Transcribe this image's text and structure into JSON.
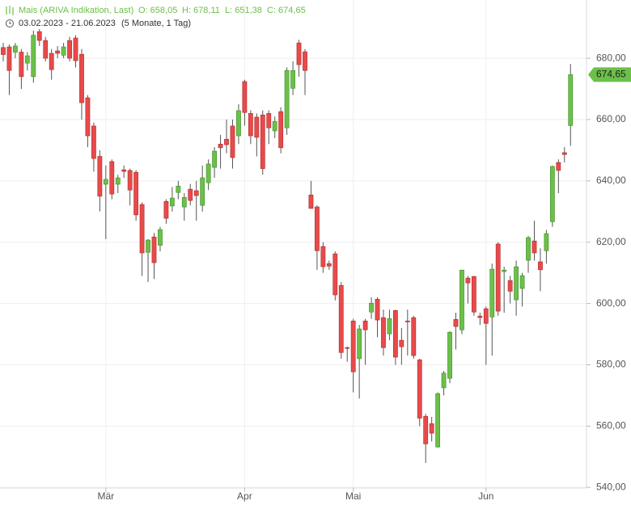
{
  "chart_data": {
    "type": "candlestick",
    "header": {
      "name": "Mais (ARIVA Indikation, Last)",
      "open": "O: 658,05",
      "high": "H: 678,11",
      "low": "L: 651,38",
      "close": "C: 674,65",
      "range": "03.02.2023 - 21.06.2023",
      "period": "(5 Monate, 1 Tag)"
    },
    "last_price_label": "674,65",
    "up_color": "#6cc04a",
    "down_color": "#e84a4a",
    "categories": [
      null,
      null,
      null,
      null,
      null,
      null,
      null,
      null,
      null,
      null,
      null,
      null,
      null,
      null,
      null,
      null,
      null,
      "Mär",
      null,
      null,
      null,
      null,
      null,
      null,
      null,
      null,
      null,
      null,
      null,
      null,
      null,
      null,
      null,
      null,
      null,
      null,
      null,
      null,
      null,
      null,
      "Apr",
      null,
      null,
      null,
      null,
      null,
      null,
      null,
      null,
      null,
      null,
      null,
      null,
      null,
      null,
      null,
      null,
      null,
      "Mai",
      null,
      null,
      null,
      null,
      null,
      null,
      null,
      null,
      null,
      null,
      null,
      null,
      null,
      null,
      null,
      null,
      null,
      null,
      null,
      null,
      null,
      "Jun",
      null,
      null,
      null,
      null,
      null,
      null,
      null,
      null,
      null,
      null,
      null,
      null,
      null,
      null
    ],
    "candles": [
      [
        683.5,
        685,
        679,
        681.2
      ],
      [
        683.7,
        684.5,
        668,
        676
      ],
      [
        682,
        685,
        680,
        684
      ],
      [
        682,
        683,
        670,
        674
      ],
      [
        678.4,
        682,
        676,
        680.8
      ],
      [
        674,
        689,
        672,
        687.5
      ],
      [
        688.7,
        689.5,
        684,
        685.8
      ],
      [
        685.8,
        687,
        679,
        680
      ],
      [
        681.6,
        683,
        673,
        676.3
      ],
      [
        682.4,
        684,
        680,
        681.6
      ],
      [
        681,
        685,
        680,
        683.7
      ],
      [
        685.8,
        687,
        679,
        680
      ],
      [
        686.6,
        687.5,
        677,
        679.2
      ],
      [
        681.3,
        683,
        660,
        665.5
      ],
      [
        667.1,
        668,
        651,
        654.7
      ],
      [
        657.9,
        659,
        643,
        647.3
      ],
      [
        648,
        650,
        630,
        635
      ],
      [
        638.9,
        645,
        621,
        640.5
      ],
      [
        646.3,
        647,
        634,
        635.7
      ],
      [
        638.9,
        642,
        636,
        641
      ],
      [
        643.6,
        645,
        641,
        643.1
      ],
      [
        643.4,
        644,
        632,
        637
      ],
      [
        642.8,
        643.5,
        627,
        628.9
      ],
      [
        632.3,
        633,
        609,
        616.5
      ],
      [
        616.7,
        621,
        607,
        620.7
      ],
      [
        621.7,
        623,
        608,
        613.3
      ],
      [
        619,
        625,
        617,
        624.1
      ],
      [
        633.3,
        634,
        626,
        627.8
      ],
      [
        631.8,
        638,
        630,
        634.4
      ],
      [
        636.2,
        640,
        634,
        638.3
      ],
      [
        631.5,
        636,
        627,
        634.6
      ],
      [
        637.3,
        639,
        632,
        633.6
      ],
      [
        636.8,
        640,
        627,
        635.2
      ],
      [
        632,
        645,
        630,
        641
      ],
      [
        639.4,
        647,
        637,
        645.5
      ],
      [
        644.4,
        651,
        641,
        649.7
      ],
      [
        652,
        655,
        644,
        650.8
      ],
      [
        653.6,
        660,
        649,
        651.8
      ],
      [
        657.9,
        660,
        644,
        647.6
      ],
      [
        654.7,
        665,
        652,
        662.9
      ],
      [
        672.4,
        673,
        658,
        662.3
      ],
      [
        662,
        663,
        652,
        654.7
      ],
      [
        660.8,
        662,
        648,
        654.2
      ],
      [
        661.5,
        663,
        642,
        644
      ],
      [
        662,
        663,
        652,
        657.3
      ],
      [
        656.3,
        661,
        654,
        659.4
      ],
      [
        662.6,
        664,
        649,
        650.8
      ],
      [
        657.3,
        677,
        655,
        676
      ],
      [
        670.2,
        679,
        668,
        676
      ],
      [
        685,
        686,
        674,
        677.9
      ],
      [
        682.1,
        683,
        668,
        676
      ],
      [
        635.4,
        640,
        631,
        631
      ],
      [
        631.5,
        632,
        611,
        617.2
      ],
      [
        618.6,
        620,
        610,
        612
      ],
      [
        613,
        614,
        611,
        612.2
      ],
      [
        616.2,
        617,
        601,
        602.8
      ],
      [
        605.9,
        607,
        582,
        584
      ],
      [
        585.6,
        586,
        581,
        585.4
      ],
      [
        594.3,
        595,
        571,
        577.7
      ],
      [
        582,
        593,
        569,
        591.7
      ],
      [
        594.3,
        595,
        580,
        591.4
      ],
      [
        597.2,
        602,
        595,
        600.1
      ],
      [
        601.4,
        602,
        589,
        594.6
      ],
      [
        595.4,
        598,
        583,
        585.6
      ],
      [
        590.1,
        598,
        588,
        595.1
      ],
      [
        597.7,
        598,
        580,
        582.5
      ],
      [
        588,
        592,
        580,
        585.9
      ],
      [
        594.3,
        598,
        583,
        594
      ],
      [
        595.4,
        596,
        582,
        583
      ],
      [
        581.6,
        582,
        560,
        562.6
      ],
      [
        563.2,
        564,
        548,
        554.2
      ],
      [
        560.8,
        563,
        555,
        557.7
      ],
      [
        553.2,
        571,
        553,
        570.6
      ],
      [
        572.5,
        578,
        570,
        577.3
      ],
      [
        575.6,
        591,
        574,
        590.6
      ],
      [
        594.8,
        597,
        585,
        592.5
      ],
      [
        591.4,
        611,
        590,
        610.9
      ],
      [
        608.3,
        609,
        600,
        606.7
      ],
      [
        608.8,
        609,
        596,
        597.2
      ],
      [
        595.9,
        597,
        593,
        595.4
      ],
      [
        598.3,
        599,
        580,
        593.5
      ],
      [
        595.6,
        613,
        583,
        611.2
      ],
      [
        619.4,
        620,
        596,
        597.5
      ],
      [
        610.4,
        612,
        597,
        610.9
      ],
      [
        607.5,
        609,
        600,
        604
      ],
      [
        601.2,
        614,
        596,
        612
      ],
      [
        604.9,
        610,
        599,
        609.1
      ],
      [
        614.1,
        622,
        610,
        621.5
      ],
      [
        620.4,
        627,
        614,
        616.5
      ],
      [
        613.6,
        618,
        604,
        611
      ],
      [
        617.2,
        624,
        613,
        622.8
      ],
      [
        626.7,
        645,
        625,
        644.7
      ],
      [
        646,
        647,
        636,
        643.4
      ],
      [
        649.2,
        651,
        646,
        648.6
      ],
      [
        658.05,
        678.11,
        651.38,
        674.65
      ]
    ],
    "ylim": [
      539.8,
      699
    ],
    "yticks": [
      {
        "value": 540,
        "label": "540,00"
      },
      {
        "value": 560,
        "label": "560,00"
      },
      {
        "value": 580,
        "label": "580,00"
      },
      {
        "value": 600,
        "label": "600,00"
      },
      {
        "value": 620,
        "label": "620,00"
      },
      {
        "value": 640,
        "label": "640,00"
      },
      {
        "value": 660,
        "label": "660,00"
      },
      {
        "value": 680,
        "label": "680,00"
      }
    ],
    "grid": true
  }
}
